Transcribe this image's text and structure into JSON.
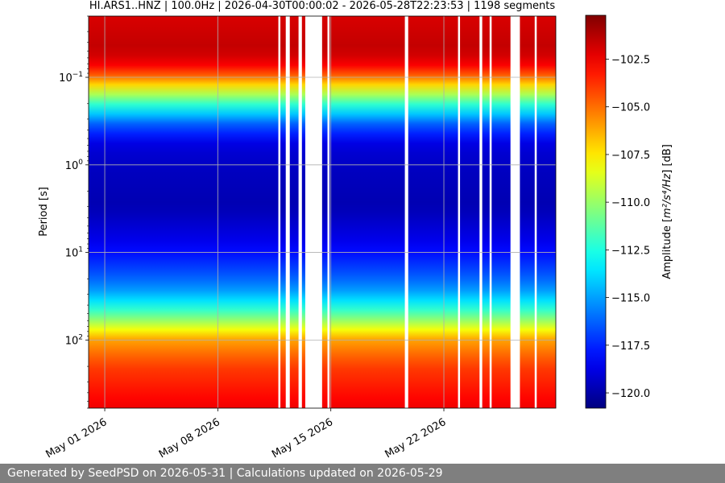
{
  "chart_data": {
    "type": "heatmap",
    "title": "HI.ARS1..HNZ | 100.0Hz | 2026-04-30T00:00:02 - 2026-05-28T22:23:53 | 1198 segments",
    "xlabel": "",
    "ylabel": "Period [s]",
    "y_scale": "log",
    "x_range": [
      "2026-04-30T00:00:02",
      "2026-05-28T22:23:53"
    ],
    "y_range": [
      0.02,
      600
    ],
    "x_ticks": [
      {
        "date": "2026-05-01",
        "label": "May 01 2026"
      },
      {
        "date": "2026-05-08",
        "label": "May 08 2026"
      },
      {
        "date": "2026-05-15",
        "label": "May 15 2026"
      },
      {
        "date": "2026-05-22",
        "label": "May 22 2026"
      }
    ],
    "y_ticks": [
      {
        "value": 0.1,
        "base": "10",
        "exp": "−1"
      },
      {
        "value": 1,
        "base": "10",
        "exp": "0"
      },
      {
        "value": 10,
        "base": "10",
        "exp": "1"
      },
      {
        "value": 100,
        "base": "10",
        "exp": "2"
      }
    ],
    "grid": true,
    "colorbar": {
      "label_main": "Amplitude [",
      "label_math": "m²/s⁴/Hz",
      "label_end": "] [dB]",
      "range": [
        -120.8,
        -100.2
      ],
      "ticks": [
        {
          "value": -102.5,
          "label": "−102.5"
        },
        {
          "value": -105.0,
          "label": "−105.0"
        },
        {
          "value": -107.5,
          "label": "−107.5"
        },
        {
          "value": -110.0,
          "label": "−110.0"
        },
        {
          "value": -112.5,
          "label": "−112.5"
        },
        {
          "value": -115.0,
          "label": "−115.0"
        },
        {
          "value": -117.5,
          "label": "−117.5"
        },
        {
          "value": -120.0,
          "label": "−120.0"
        }
      ],
      "colormap": "jet"
    },
    "data_gaps": [
      [
        "2026-05-11T18:00:00",
        "2026-05-11T21:00:00"
      ],
      [
        "2026-05-12T05:00:00",
        "2026-05-12T11:00:00"
      ],
      [
        "2026-05-13T00:00:00",
        "2026-05-13T05:00:00"
      ],
      [
        "2026-05-13T10:00:00",
        "2026-05-14T11:00:00"
      ],
      [
        "2026-05-14T19:00:00",
        "2026-05-14T22:00:00"
      ],
      [
        "2026-05-19T14:00:00",
        "2026-05-19T19:00:00"
      ],
      [
        "2026-05-22T21:00:00",
        "2026-05-23T00:00:00"
      ],
      [
        "2026-05-24T05:00:00",
        "2026-05-24T09:00:00"
      ],
      [
        "2026-05-24T20:00:00",
        "2026-05-24T23:00:00"
      ],
      [
        "2026-05-26T03:00:00",
        "2026-05-26T17:00:00"
      ],
      [
        "2026-05-27T15:00:00",
        "2026-05-27T18:00:00"
      ]
    ],
    "amplitude_profile": [
      {
        "period": 0.02,
        "db": -102
      },
      {
        "period": 0.05,
        "db": -101.5
      },
      {
        "period": 0.08,
        "db": -103
      },
      {
        "period": 0.12,
        "db": -107
      },
      {
        "period": 0.2,
        "db": -112
      },
      {
        "period": 0.35,
        "db": -116.5
      },
      {
        "period": 0.6,
        "db": -119
      },
      {
        "period": 1.2,
        "db": -119.5
      },
      {
        "period": 3,
        "db": -119.8
      },
      {
        "period": 8,
        "db": -118.5
      },
      {
        "period": 15,
        "db": -117
      },
      {
        "period": 25,
        "db": -115.5
      },
      {
        "period": 40,
        "db": -113
      },
      {
        "period": 60,
        "db": -110
      },
      {
        "period": 100,
        "db": -106
      },
      {
        "period": 200,
        "db": -104
      },
      {
        "period": 600,
        "db": -102.5
      }
    ]
  },
  "footer": {
    "text": "Generated by SeedPSD on 2026-05-31 | Calculations updated on 2026-05-29"
  }
}
